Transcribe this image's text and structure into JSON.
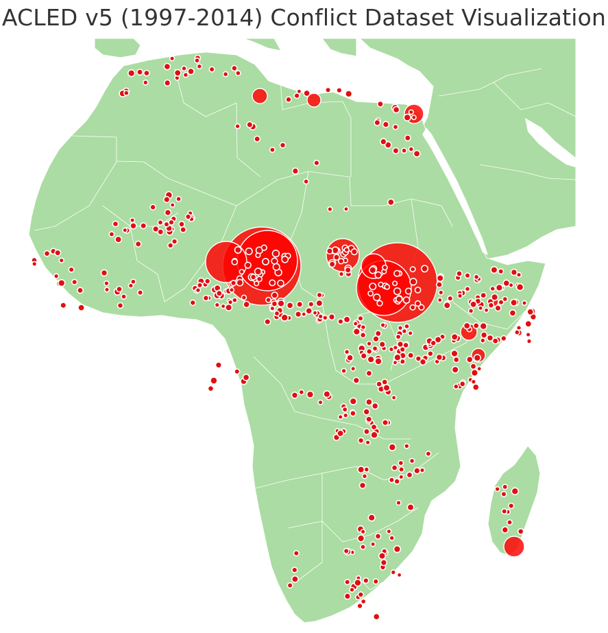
{
  "title": "ACLED v5 (1997-2014) Conflict Dataset Visualization",
  "colors": {
    "land": "#abdca3",
    "borders": "#ffffff",
    "sea": "#ffffff",
    "event_marker": "#e01010",
    "large_cluster": "#ff0000"
  }
}
